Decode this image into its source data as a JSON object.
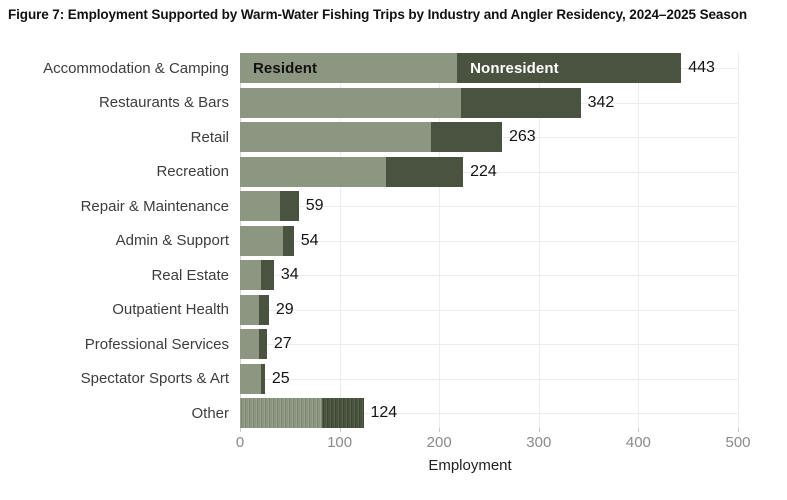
{
  "figure": {
    "title": "Figure 7: Employment Supported by Warm-Water Fishing Trips by Industry and Angler Residency, 2024–2025 Season"
  },
  "chart_data": {
    "type": "bar",
    "orientation": "horizontal",
    "stacked": true,
    "title": "Figure 7: Employment Supported by Warm-Water Fishing Trips by Industry and Angler Residency, 2024–2025 Season",
    "xlabel": "Employment",
    "ylabel": "",
    "xlim": [
      0,
      500
    ],
    "xticks": [
      0,
      100,
      200,
      300,
      400,
      500
    ],
    "grid": true,
    "legend": {
      "placement": "inside-first-bar",
      "resident_label": "Resident",
      "nonresident_label": "Nonresident"
    },
    "colors": {
      "resident": "#8D9680",
      "nonresident": "#4A5340",
      "resident_label_text": "#111111",
      "nonresident_label_text": "#ffffff"
    },
    "categories": [
      {
        "label": "Accommodation & Camping",
        "resident": 218,
        "nonresident": 225,
        "total": 443,
        "pattern": "solid"
      },
      {
        "label": "Restaurants & Bars",
        "resident": 222,
        "nonresident": 120,
        "total": 342,
        "pattern": "solid"
      },
      {
        "label": "Retail",
        "resident": 192,
        "nonresident": 71,
        "total": 263,
        "pattern": "solid"
      },
      {
        "label": "Recreation",
        "resident": 147,
        "nonresident": 77,
        "total": 224,
        "pattern": "solid"
      },
      {
        "label": "Repair & Maintenance",
        "resident": 40,
        "nonresident": 19,
        "total": 59,
        "pattern": "solid"
      },
      {
        "label": "Admin & Support",
        "resident": 43,
        "nonresident": 11,
        "total": 54,
        "pattern": "solid"
      },
      {
        "label": "Real Estate",
        "resident": 21,
        "nonresident": 13,
        "total": 34,
        "pattern": "solid"
      },
      {
        "label": "Outpatient Health",
        "resident": 19,
        "nonresident": 10,
        "total": 29,
        "pattern": "solid"
      },
      {
        "label": "Professional Services",
        "resident": 19,
        "nonresident": 8,
        "total": 27,
        "pattern": "solid"
      },
      {
        "label": "Spectator Sports & Art",
        "resident": 21,
        "nonresident": 4,
        "total": 25,
        "pattern": "solid"
      },
      {
        "label": "Other",
        "resident": 82,
        "nonresident": 42,
        "total": 124,
        "pattern": "striped"
      }
    ]
  }
}
